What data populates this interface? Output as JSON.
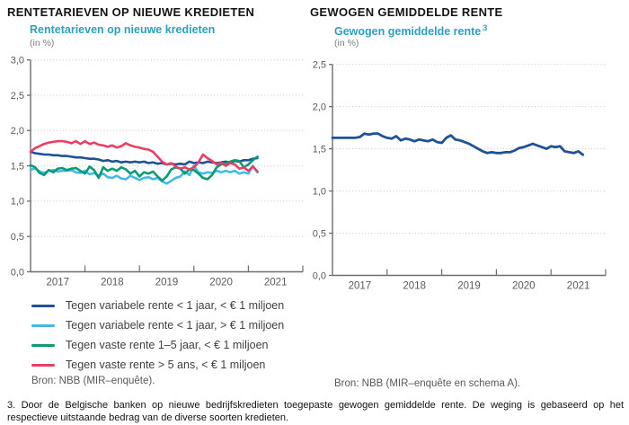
{
  "left_panel": {
    "title": "RENTETARIEVEN OP NIEUWE KREDIETEN",
    "subtitle": "Rentetarieven op nieuwe kredieten",
    "unit_label": "(in %)",
    "source": "Bron: NBB (MIR–enquête)."
  },
  "right_panel": {
    "title": "GEWOGEN GEMIDDELDE RENTE",
    "subtitle": "Gewogen gemiddelde rente",
    "subtitle_footnote_ref": "3",
    "unit_label": "(in %)",
    "source": "Bron: NBB (MIR–enquête en schema A)."
  },
  "footnote": "3. Door de Belgische banken op nieuwe bedrijfskredieten toegepaste gewogen gemiddelde rente. De weging is gebaseerd op het respectieve uitstaande bedrag van de diverse soorten kredieten.",
  "colors": {
    "axis": "#6E6E6E",
    "grid": "#C9C9C9",
    "tick_text": "#595959",
    "subtitle_teal": "#2E9FC0"
  },
  "chart_data": [
    {
      "type": "line",
      "title": "Rentetarieven op nieuwe kredieten",
      "unit": "(in %)",
      "x_frequency": "monthly",
      "x_start": "2017-01",
      "x_range_months": 60,
      "x_axis_years": [
        "2017",
        "2018",
        "2019",
        "2020",
        "2021"
      ],
      "xtick_months": [
        12,
        24,
        36,
        48,
        60
      ],
      "ylim": [
        0,
        3
      ],
      "ytick_values": [
        3,
        2.5,
        2,
        1.5,
        1,
        0.5,
        0
      ],
      "ytick_labels": [
        "3,0",
        "2,5",
        "2,0",
        "1,5",
        "1,0",
        "0,5",
        "0,0"
      ],
      "grid": "horizontal dotted",
      "legend_position": "below",
      "series": [
        {
          "name": "Tegen variabele rente < 1 jaar, < € 1 miljoen",
          "color": "#1D5296",
          "values": [
            1.7,
            1.68,
            1.67,
            1.66,
            1.66,
            1.65,
            1.65,
            1.64,
            1.64,
            1.63,
            1.62,
            1.62,
            1.61,
            1.6,
            1.6,
            1.59,
            1.57,
            1.58,
            1.56,
            1.57,
            1.55,
            1.56,
            1.55,
            1.56,
            1.55,
            1.56,
            1.54,
            1.55,
            1.53,
            1.54,
            1.52,
            1.53,
            1.52,
            1.53,
            1.52,
            1.56,
            1.54,
            1.55,
            1.54,
            1.56,
            1.55,
            1.54,
            1.55,
            1.56,
            1.55,
            1.57,
            1.56,
            1.58,
            1.58,
            1.6,
            1.61
          ]
        },
        {
          "name": "Tegen variabele rente < 1 jaar, > € 1 miljoen",
          "color": "#44B8E8",
          "values": [
            1.44,
            1.47,
            1.42,
            1.4,
            1.43,
            1.44,
            1.42,
            1.43,
            1.43,
            1.44,
            1.41,
            1.4,
            1.43,
            1.38,
            1.4,
            1.36,
            1.39,
            1.34,
            1.33,
            1.36,
            1.32,
            1.31,
            1.36,
            1.33,
            1.3,
            1.33,
            1.34,
            1.31,
            1.33,
            1.28,
            1.25,
            1.29,
            1.33,
            1.35,
            1.42,
            1.37,
            1.5,
            1.41,
            1.39,
            1.41,
            1.4,
            1.43,
            1.41,
            1.43,
            1.41,
            1.43,
            1.39,
            1.41,
            1.39,
            1.5,
            1.41
          ]
        },
        {
          "name": "Tegen vaste rente 1–5 jaar, < € 1 miljoen",
          "color": "#0A9B74",
          "values": [
            1.51,
            1.48,
            1.4,
            1.37,
            1.44,
            1.41,
            1.46,
            1.47,
            1.44,
            1.46,
            1.47,
            1.43,
            1.39,
            1.49,
            1.44,
            1.33,
            1.48,
            1.43,
            1.46,
            1.43,
            1.48,
            1.45,
            1.39,
            1.43,
            1.35,
            1.41,
            1.39,
            1.42,
            1.35,
            1.29,
            1.35,
            1.45,
            1.48,
            1.46,
            1.39,
            1.45,
            1.44,
            1.39,
            1.33,
            1.31,
            1.37,
            1.48,
            1.52,
            1.54,
            1.56,
            1.58,
            1.57,
            1.48,
            1.52,
            1.58,
            1.63
          ]
        },
        {
          "name": "Tegen vaste rente > 5 ans, < € 1 miljoen",
          "color": "#E83F63",
          "values": [
            1.7,
            1.75,
            1.78,
            1.81,
            1.83,
            1.84,
            1.85,
            1.85,
            1.84,
            1.82,
            1.85,
            1.81,
            1.85,
            1.81,
            1.83,
            1.8,
            1.79,
            1.77,
            1.79,
            1.76,
            1.78,
            1.82,
            1.79,
            1.77,
            1.76,
            1.74,
            1.73,
            1.7,
            1.63,
            1.56,
            1.52,
            1.54,
            1.49,
            1.46,
            1.48,
            1.45,
            1.48,
            1.55,
            1.66,
            1.61,
            1.57,
            1.52,
            1.55,
            1.5,
            1.54,
            1.52,
            1.46,
            1.48,
            1.43,
            1.49,
            1.42
          ]
        }
      ]
    },
    {
      "type": "line",
      "title": "Gewogen gemiddelde rente",
      "unit": "(in %)",
      "x_frequency": "monthly",
      "x_start": "2017-01",
      "x_range_months": 60,
      "x_axis_years": [
        "2017",
        "2018",
        "2019",
        "2020",
        "2021"
      ],
      "xtick_months": [
        12,
        24,
        36,
        48,
        60
      ],
      "ylim": [
        0,
        2.5
      ],
      "ytick_values": [
        2.5,
        2,
        1.5,
        1,
        0.5,
        0
      ],
      "ytick_labels": [
        "2,5",
        "2,0",
        "1,5",
        "1,0",
        "0,5",
        "0,0"
      ],
      "grid": "horizontal dotted",
      "legend_position": "none",
      "series": [
        {
          "name": "Gewogen gemiddelde rente",
          "color": "#1D5296",
          "values": [
            1.63,
            1.63,
            1.63,
            1.63,
            1.63,
            1.63,
            1.64,
            1.68,
            1.67,
            1.68,
            1.68,
            1.65,
            1.63,
            1.62,
            1.65,
            1.6,
            1.62,
            1.61,
            1.59,
            1.61,
            1.6,
            1.59,
            1.61,
            1.58,
            1.57,
            1.63,
            1.66,
            1.61,
            1.6,
            1.58,
            1.56,
            1.53,
            1.5,
            1.47,
            1.45,
            1.46,
            1.45,
            1.45,
            1.46,
            1.46,
            1.48,
            1.51,
            1.52,
            1.54,
            1.56,
            1.54,
            1.52,
            1.5,
            1.53,
            1.52,
            1.53,
            1.47,
            1.46,
            1.45,
            1.47,
            1.43
          ]
        }
      ]
    }
  ]
}
